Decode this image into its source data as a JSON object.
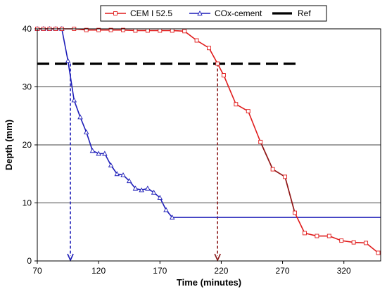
{
  "chart_data": {
    "type": "line",
    "xlabel": "Time (minutes)",
    "ylabel": "Depth (mm)",
    "xlim": [
      70,
      350
    ],
    "ylim": [
      0,
      40
    ],
    "x_ticks": [
      70,
      120,
      170,
      220,
      270,
      320
    ],
    "y_ticks": [
      0,
      10,
      20,
      30,
      40
    ],
    "grid": "horizontal",
    "legend_position": "top",
    "series": [
      {
        "name": "CEM I 52.5",
        "color": "#e01b1b",
        "segment_color": "#8b1a1a",
        "marker": "square-open",
        "x": [
          70,
          75,
          80,
          85,
          90,
          100,
          110,
          120,
          130,
          140,
          150,
          160,
          170,
          180,
          190,
          200,
          210,
          217,
          222,
          232,
          242,
          252,
          262,
          272,
          280,
          288,
          298,
          308,
          318,
          328,
          338,
          348
        ],
        "y": [
          40,
          40,
          40,
          40,
          40,
          40,
          39.8,
          39.8,
          39.8,
          39.8,
          39.7,
          39.7,
          39.7,
          39.7,
          39.6,
          38.0,
          36.7,
          34.0,
          32.0,
          27.0,
          25.8,
          20.5,
          15.8,
          14.5,
          8.3,
          4.8,
          4.3,
          4.3,
          3.5,
          3.2,
          3.1,
          1.4
        ]
      },
      {
        "name": "COx-cement",
        "color": "#1d1db8",
        "marker": "triangle-open",
        "x": [
          70,
          75,
          80,
          85,
          90,
          95,
          100,
          105,
          110,
          115,
          120,
          125,
          130,
          135,
          140,
          145,
          150,
          155,
          160,
          165,
          170,
          175,
          180,
          350
        ],
        "y": [
          40,
          40,
          40,
          40,
          40,
          34.5,
          27.7,
          24.8,
          22.2,
          19.0,
          18.5,
          18.5,
          16.5,
          15.0,
          14.8,
          13.8,
          12.5,
          12.2,
          12.5,
          11.8,
          10.9,
          8.8,
          7.5,
          7.5
        ]
      },
      {
        "name": "Ref",
        "color": "#000000",
        "style": "dashed",
        "x": [
          70,
          285
        ],
        "y": [
          34,
          34
        ]
      }
    ],
    "drop_lines": [
      {
        "x": 97,
        "y_from": 34,
        "color": "#1d1db8"
      },
      {
        "x": 217,
        "y_from": 34,
        "color": "#8b1a1a"
      }
    ]
  }
}
